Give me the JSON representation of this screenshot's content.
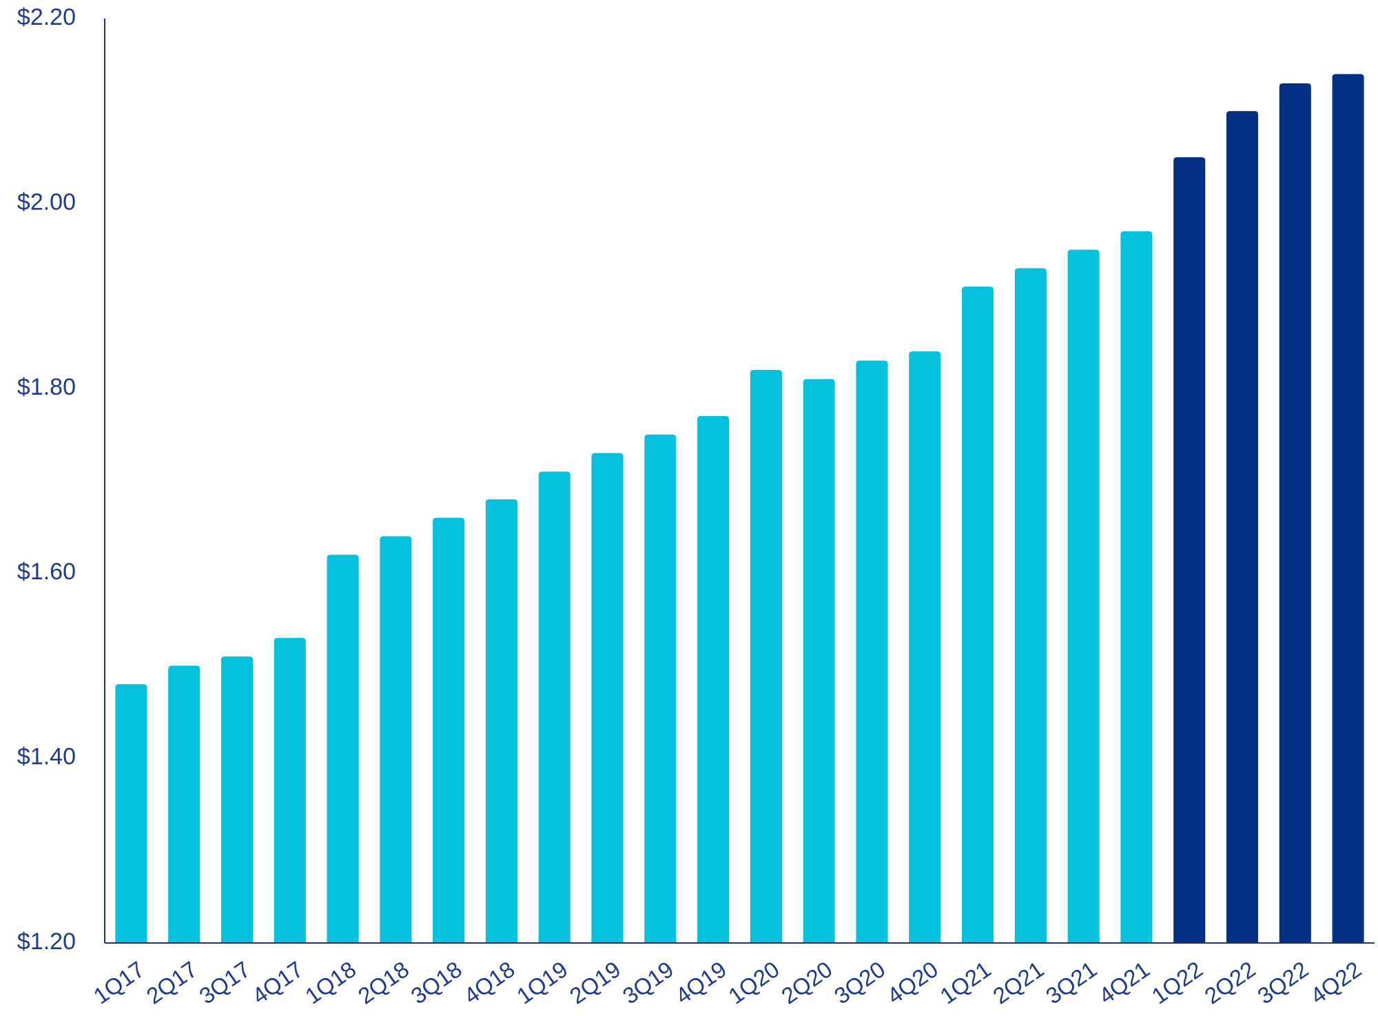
{
  "chart_data": {
    "type": "bar",
    "categories": [
      "1Q17",
      "2Q17",
      "3Q17",
      "4Q17",
      "1Q18",
      "2Q18",
      "3Q18",
      "4Q18",
      "1Q19",
      "2Q19",
      "3Q19",
      "4Q19",
      "1Q20",
      "2Q20",
      "3Q20",
      "4Q20",
      "1Q21",
      "2Q21",
      "3Q21",
      "4Q21",
      "1Q22",
      "2Q22",
      "3Q22",
      "4Q22"
    ],
    "values": [
      1.48,
      1.5,
      1.51,
      1.53,
      1.62,
      1.64,
      1.66,
      1.68,
      1.71,
      1.73,
      1.75,
      1.77,
      1.82,
      1.81,
      1.83,
      1.84,
      1.91,
      1.93,
      1.95,
      1.97,
      2.05,
      2.1,
      2.13,
      2.14
    ],
    "highlight_from_index": 20,
    "ylim": [
      1.2,
      2.2
    ],
    "yticks": [
      1.2,
      1.4,
      1.6,
      1.8,
      2.0,
      2.2
    ],
    "ytick_labels": [
      "$1.20",
      "$1.40",
      "$1.60",
      "$1.80",
      "$2.00",
      "$2.20"
    ],
    "title": "",
    "xlabel": "",
    "ylabel": "",
    "grid": false,
    "colors": {
      "bar_light": "#06C1DE",
      "bar_dark": "#033083",
      "axis": "#1F2F78",
      "text": "#1F3A8A"
    }
  }
}
